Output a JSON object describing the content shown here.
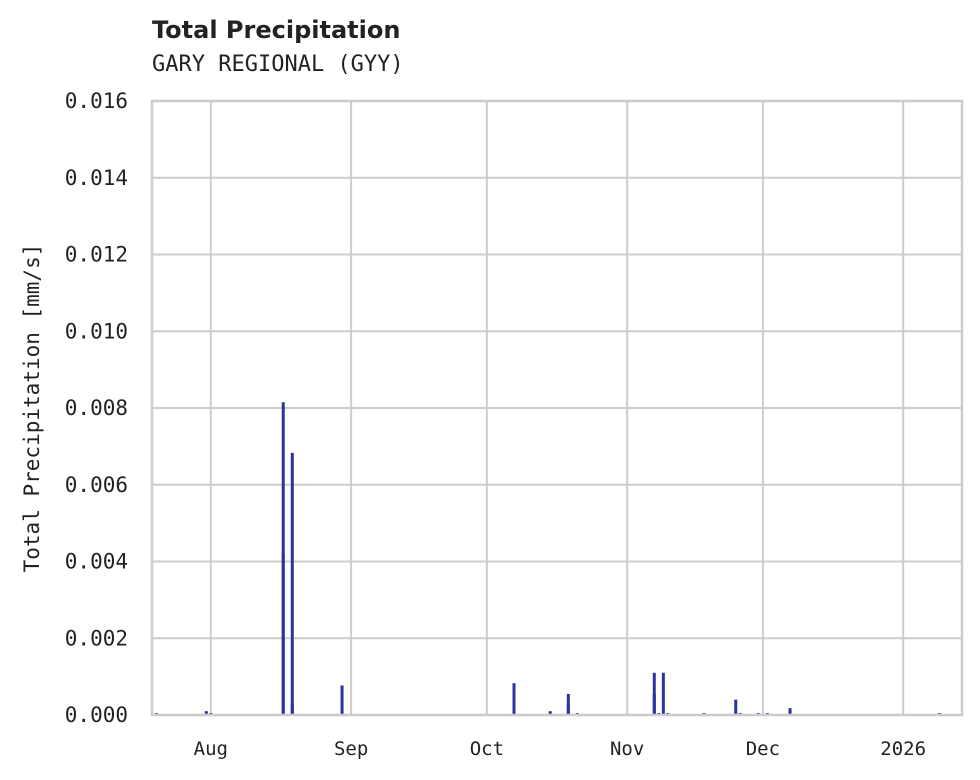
{
  "header": {
    "title": "Total Precipitation",
    "subtitle": "GARY REGIONAL (GYY)"
  },
  "colors": {
    "bar": "#28359a",
    "grid": "#cccccc",
    "text": "#222222"
  },
  "chart_data": {
    "type": "bar",
    "title": "Total Precipitation",
    "subtitle": "GARY REGIONAL (GYY)",
    "xlabel": "",
    "ylabel": "Total Precipitation [mm/s]",
    "ylim": [
      0,
      0.016
    ],
    "grid": true,
    "legend": null,
    "yticks": [
      "0.000",
      "0.002",
      "0.004",
      "0.006",
      "0.008",
      "0.010",
      "0.012",
      "0.014",
      "0.016"
    ],
    "xticks": [
      "Aug",
      "Sep",
      "Oct",
      "Nov",
      "Dec",
      "2026"
    ],
    "x_range": [
      "2025-07-19",
      "2026-01-14"
    ],
    "series": [
      {
        "name": "Total Precipitation",
        "points": [
          {
            "x": "2025-07-20",
            "y": 5e-05
          },
          {
            "x": "2025-07-31",
            "y": 0.0001
          },
          {
            "x": "2025-08-01",
            "y": 5e-05
          },
          {
            "x": "2025-08-17",
            "y": 0.0042
          },
          {
            "x": "2025-08-17",
            "y": 0.00815
          },
          {
            "x": "2025-08-19",
            "y": 0.0003
          },
          {
            "x": "2025-08-19",
            "y": 0.00683
          },
          {
            "x": "2025-08-30",
            "y": 0.00077
          },
          {
            "x": "2025-10-07",
            "y": 0.00083
          },
          {
            "x": "2025-10-15",
            "y": 0.0001
          },
          {
            "x": "2025-10-19",
            "y": 0.0003
          },
          {
            "x": "2025-10-19",
            "y": 0.00055
          },
          {
            "x": "2025-10-21",
            "y": 5e-05
          },
          {
            "x": "2025-11-07",
            "y": 0.00055
          },
          {
            "x": "2025-11-07",
            "y": 0.0011
          },
          {
            "x": "2025-11-08",
            "y": 5e-05
          },
          {
            "x": "2025-11-09",
            "y": 0.0011
          },
          {
            "x": "2025-11-10",
            "y": 5e-05
          },
          {
            "x": "2025-11-18",
            "y": 5e-05
          },
          {
            "x": "2025-11-25",
            "y": 0.0004
          },
          {
            "x": "2025-11-26",
            "y": 5e-05
          },
          {
            "x": "2025-11-30",
            "y": 5e-05
          },
          {
            "x": "2025-12-02",
            "y": 5e-05
          },
          {
            "x": "2025-12-07",
            "y": 0.00018
          },
          {
            "x": "2026-01-09",
            "y": 5e-05
          }
        ]
      }
    ]
  }
}
